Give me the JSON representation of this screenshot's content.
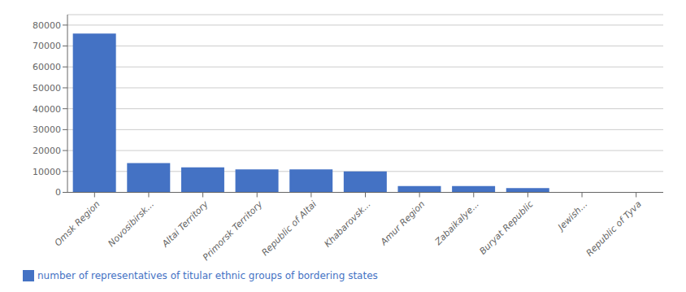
{
  "chart_data": {
    "type": "bar",
    "categories": [
      "Omsk Region",
      "Novosibirsk...",
      "Altai Territory",
      "Primorsk Territory",
      "Republic of Altai",
      "Khabarovsk...",
      "Amur Region",
      "Zabaikalye...",
      "Buryat Republic",
      "Jewish...",
      "Republic of Tyva"
    ],
    "series": [
      {
        "name": "number of representatives of titular ethnic groups of bordering states",
        "color": "#4472c4",
        "values": [
          76000,
          14000,
          12000,
          11000,
          11000,
          10000,
          3000,
          3000,
          2000,
          200,
          100
        ]
      }
    ],
    "ylim": [
      0,
      85000
    ],
    "yticks": [
      0,
      10000,
      20000,
      30000,
      40000,
      50000,
      60000,
      70000,
      80000
    ],
    "grid": true,
    "legend": "bottom"
  }
}
